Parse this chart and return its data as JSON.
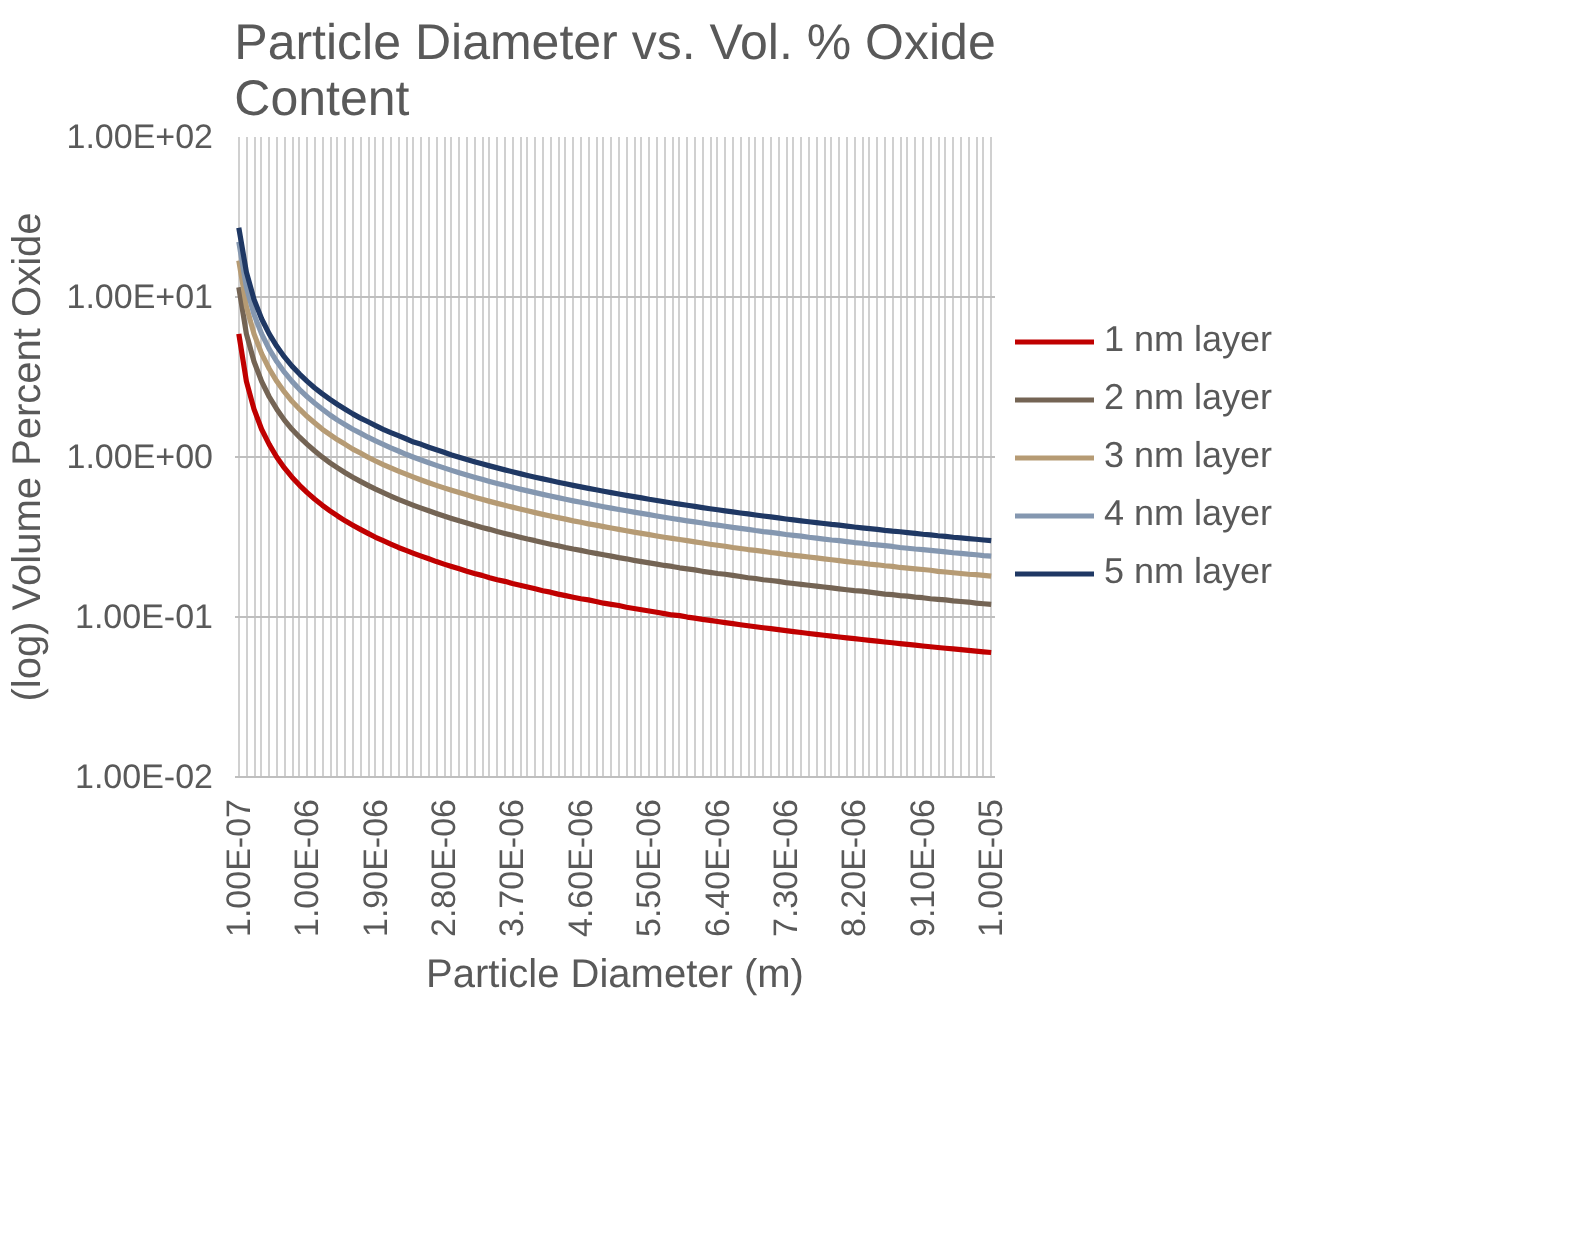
{
  "chart_data": {
    "type": "line",
    "title": "Particle Diameter vs. Vol. % Oxide Content",
    "xlabel": "Particle Diameter (m)",
    "ylabel": "(log) Volume Percent Oxide",
    "categories": [
      "1.00E-07",
      null,
      null,
      null,
      null,
      null,
      null,
      null,
      null,
      "1.00E-06",
      null,
      null,
      null,
      null,
      null,
      null,
      null,
      null,
      "1.90E-06",
      null,
      null,
      null,
      null,
      null,
      null,
      null,
      null,
      "2.80E-06",
      null,
      null,
      null,
      null,
      null,
      null,
      null,
      null,
      "3.70E-06",
      null,
      null,
      null,
      null,
      null,
      null,
      null,
      null,
      "4.60E-06",
      null,
      null,
      null,
      null,
      null,
      null,
      null,
      null,
      "5.50E-06",
      null,
      null,
      null,
      null,
      null,
      null,
      null,
      null,
      "6.40E-06",
      null,
      null,
      null,
      null,
      null,
      null,
      null,
      null,
      "7.30E-06",
      null,
      null,
      null,
      null,
      null,
      null,
      null,
      null,
      "8.20E-06",
      null,
      null,
      null,
      null,
      null,
      null,
      null,
      null,
      "9.10E-06",
      null,
      null,
      null,
      null,
      null,
      null,
      null,
      null,
      "1.00E-05"
    ],
    "series": [
      {
        "name": "1 nm layer",
        "color": "#c00000",
        "values": [
          5.88,
          2.97,
          1.99,
          1.49,
          1.2,
          0.997,
          0.855,
          0.748,
          0.665,
          0.599,
          0.544,
          0.499,
          0.461,
          0.428,
          0.399,
          0.375,
          0.353,
          0.333,
          0.315,
          0.3,
          0.285,
          0.272,
          0.261,
          0.25,
          0.24,
          0.231,
          0.222,
          0.214,
          0.207,
          0.2,
          0.193,
          0.187,
          0.182,
          0.176,
          0.171,
          0.167,
          0.162,
          0.158,
          0.154,
          0.15,
          0.146,
          0.143,
          0.139,
          0.136,
          0.133,
          0.13,
          0.128,
          0.125,
          0.122,
          0.12,
          0.118,
          0.115,
          0.113,
          0.111,
          0.109,
          0.107,
          0.105,
          0.103,
          0.102,
          0.0999,
          0.0983,
          0.0967,
          0.0952,
          0.0937,
          0.0923,
          0.0909,
          0.0895,
          0.0882,
          0.0869,
          0.0857,
          0.0845,
          0.0833,
          0.0822,
          0.0811,
          0.08,
          0.0789,
          0.0779,
          0.0769,
          0.0759,
          0.075,
          0.0741,
          0.0732,
          0.0723,
          0.0714,
          0.0706,
          0.0698,
          0.069,
          0.0682,
          0.0674,
          0.0667,
          0.0659,
          0.0652,
          0.0645,
          0.0638,
          0.0632,
          0.0625,
          0.0619,
          0.0612,
          0.0606,
          0.06
        ]
      },
      {
        "name": "2 nm layer",
        "color": "#746454",
        "values": [
          11.5,
          5.88,
          3.95,
          2.97,
          2.38,
          1.99,
          1.7,
          1.49,
          1.33,
          1.2,
          1.09,
          0.997,
          0.92,
          0.855,
          0.798,
          0.748,
          0.704,
          0.665,
          0.63,
          0.599,
          0.57,
          0.544,
          0.521,
          0.499,
          0.479,
          0.461,
          0.444,
          0.428,
          0.413,
          0.399,
          0.387,
          0.375,
          0.363,
          0.353,
          0.342,
          0.333,
          0.324,
          0.315,
          0.307,
          0.3,
          0.292,
          0.285,
          0.279,
          0.272,
          0.266,
          0.261,
          0.255,
          0.25,
          0.245,
          0.24,
          0.235,
          0.231,
          0.226,
          0.222,
          0.218,
          0.214,
          0.21,
          0.207,
          0.203,
          0.2,
          0.197,
          0.193,
          0.19,
          0.187,
          0.185,
          0.182,
          0.179,
          0.176,
          0.174,
          0.171,
          0.169,
          0.167,
          0.164,
          0.162,
          0.16,
          0.158,
          0.156,
          0.154,
          0.152,
          0.15,
          0.148,
          0.146,
          0.145,
          0.143,
          0.141,
          0.139,
          0.138,
          0.136,
          0.135,
          0.133,
          0.132,
          0.13,
          0.129,
          0.128,
          0.126,
          0.125,
          0.124,
          0.122,
          0.121,
          0.12
        ]
      },
      {
        "name": "3 nm layer",
        "color": "#b69b74",
        "values": [
          16.9,
          8.73,
          5.88,
          4.43,
          3.56,
          2.97,
          2.55,
          2.23,
          1.99,
          1.79,
          1.63,
          1.49,
          1.38,
          1.28,
          1.2,
          1.12,
          1.06,
          0.997,
          0.944,
          0.897,
          0.855,
          0.816,
          0.781,
          0.748,
          0.718,
          0.691,
          0.665,
          0.641,
          0.619,
          0.599,
          0.58,
          0.561,
          0.544,
          0.528,
          0.513,
          0.499,
          0.486,
          0.473,
          0.461,
          0.449,
          0.438,
          0.428,
          0.418,
          0.409,
          0.399,
          0.391,
          0.382,
          0.375,
          0.367,
          0.36,
          0.353,
          0.346,
          0.339,
          0.333,
          0.327,
          0.321,
          0.315,
          0.31,
          0.305,
          0.3,
          0.295,
          0.29,
          0.285,
          0.281,
          0.277,
          0.272,
          0.268,
          0.264,
          0.261,
          0.257,
          0.253,
          0.25,
          0.246,
          0.243,
          0.24,
          0.237,
          0.234,
          0.231,
          0.228,
          0.225,
          0.222,
          0.219,
          0.217,
          0.214,
          0.212,
          0.209,
          0.207,
          0.204,
          0.202,
          0.2,
          0.198,
          0.196,
          0.193,
          0.191,
          0.189,
          0.187,
          0.185,
          0.184,
          0.182,
          0.18
        ]
      },
      {
        "name": "4 nm layer",
        "color": "#8497b0",
        "values": [
          22.1,
          11.5,
          7.79,
          5.88,
          4.72,
          3.95,
          3.39,
          2.97,
          2.64,
          2.38,
          2.17,
          1.99,
          1.83,
          1.7,
          1.59,
          1.49,
          1.41,
          1.33,
          1.26,
          1.2,
          1.14,
          1.09,
          1.04,
          0.997,
          0.957,
          0.92,
          0.886,
          0.855,
          0.825,
          0.798,
          0.772,
          0.748,
          0.726,
          0.704,
          0.684,
          0.665,
          0.647,
          0.63,
          0.614,
          0.599,
          0.584,
          0.57,
          0.557,
          0.544,
          0.532,
          0.521,
          0.51,
          0.499,
          0.489,
          0.479,
          0.47,
          0.461,
          0.452,
          0.444,
          0.436,
          0.428,
          0.42,
          0.413,
          0.406,
          0.399,
          0.393,
          0.387,
          0.38,
          0.375,
          0.369,
          0.363,
          0.358,
          0.353,
          0.347,
          0.342,
          0.338,
          0.333,
          0.328,
          0.324,
          0.32,
          0.315,
          0.311,
          0.307,
          0.303,
          0.3,
          0.296,
          0.292,
          0.289,
          0.285,
          0.282,
          0.279,
          0.276,
          0.272,
          0.269,
          0.266,
          0.264,
          0.261,
          0.258,
          0.255,
          0.252,
          0.25,
          0.247,
          0.245,
          0.242,
          0.24
        ]
      },
      {
        "name": "5 nm layer",
        "color": "#1f3864",
        "values": [
          27.1,
          14.3,
          9.67,
          7.31,
          5.88,
          4.92,
          4.22,
          3.7,
          3.3,
          2.97,
          2.7,
          2.48,
          2.29,
          2.13,
          1.99,
          1.86,
          1.75,
          1.66,
          1.57,
          1.49,
          1.42,
          1.36,
          1.3,
          1.24,
          1.2,
          1.15,
          1.11,
          1.07,
          1.03,
          0.997,
          0.965,
          0.935,
          0.906,
          0.88,
          0.855,
          0.831,
          0.809,
          0.787,
          0.767,
          0.748,
          0.73,
          0.713,
          0.696,
          0.68,
          0.665,
          0.651,
          0.637,
          0.624,
          0.611,
          0.599,
          0.587,
          0.576,
          0.565,
          0.555,
          0.544,
          0.535,
          0.525,
          0.516,
          0.508,
          0.499,
          0.491,
          0.483,
          0.475,
          0.468,
          0.461,
          0.454,
          0.447,
          0.441,
          0.434,
          0.428,
          0.422,
          0.416,
          0.41,
          0.405,
          0.399,
          0.394,
          0.389,
          0.384,
          0.379,
          0.375,
          0.37,
          0.365,
          0.361,
          0.357,
          0.353,
          0.348,
          0.344,
          0.341,
          0.337,
          0.333,
          0.329,
          0.326,
          0.322,
          0.319,
          0.315,
          0.312,
          0.309,
          0.306,
          0.303,
          0.3
        ]
      }
    ],
    "ylim": [
      0.01,
      100
    ],
    "yticks": [
      {
        "value": 0.01,
        "label": "1.00E-02"
      },
      {
        "value": 0.1,
        "label": "1.00E-01"
      },
      {
        "value": 1,
        "label": "1.00E+00"
      },
      {
        "value": 10,
        "label": "1.00E+01"
      },
      {
        "value": 100,
        "label": "1.00E+02"
      }
    ],
    "log": true,
    "grid": true,
    "legend": "right",
    "marker": "none"
  }
}
